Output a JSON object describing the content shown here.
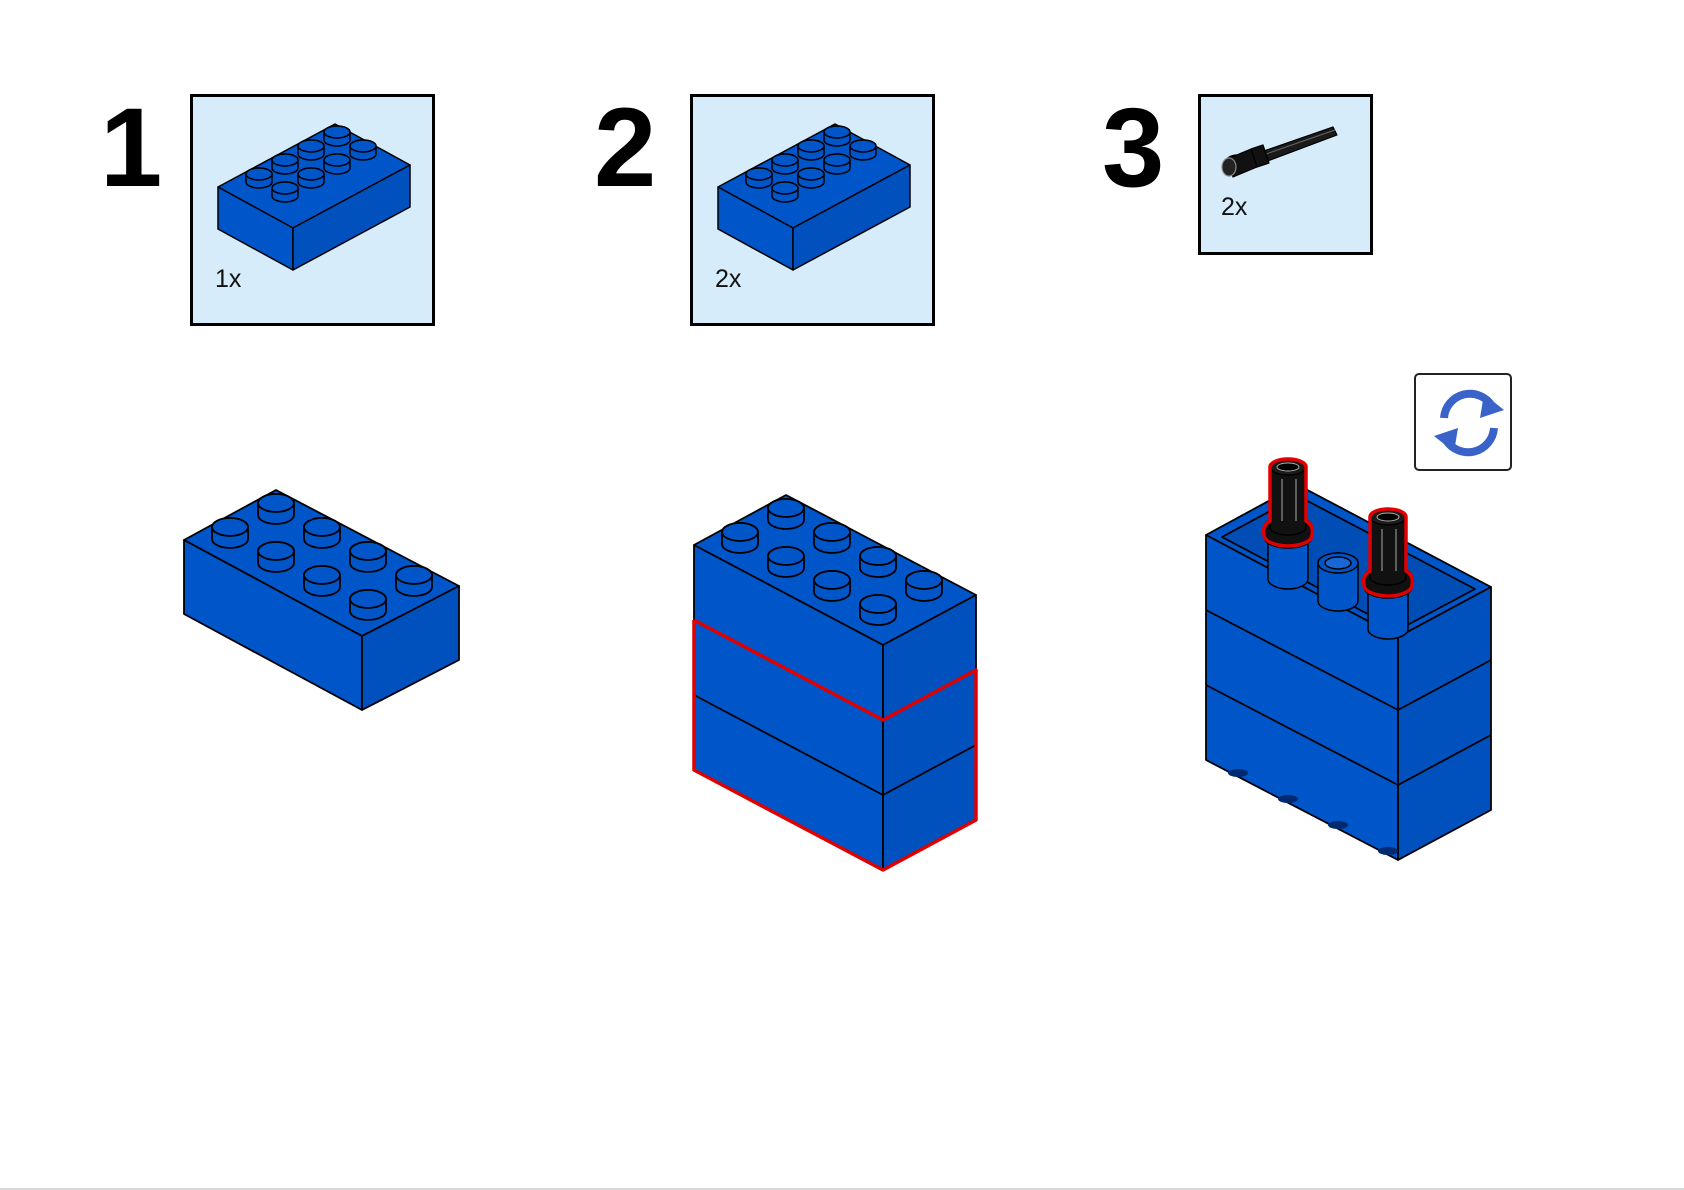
{
  "colors": {
    "brick_blue": "#0055c8",
    "brick_blue_dark": "#003f9c",
    "callout_bg": "#d6ecfb",
    "highlight": "#e00000",
    "pin_black": "#111111",
    "rotate_icon": "#3a63c9"
  },
  "steps": [
    {
      "number": "1",
      "parts": [
        {
          "quantity": "1x",
          "part": "2x4-brick",
          "color": "blue"
        }
      ]
    },
    {
      "number": "2",
      "parts": [
        {
          "quantity": "2x",
          "part": "2x4-brick",
          "color": "blue"
        }
      ]
    },
    {
      "number": "3",
      "parts": [
        {
          "quantity": "2x",
          "part": "long-friction-pin",
          "color": "black"
        }
      ]
    }
  ],
  "rotate_indicator": {
    "icon": "rotate-model-icon"
  }
}
